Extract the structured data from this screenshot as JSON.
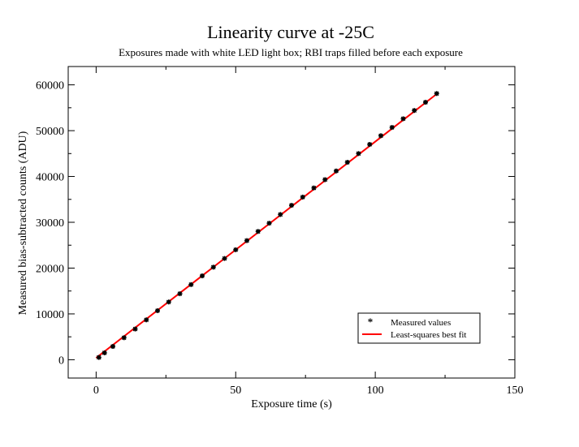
{
  "chart_data": {
    "type": "scatter",
    "title": "Linearity curve at -25C",
    "subtitle": "Exposures made with white LED light box; RBI traps filled before each exposure",
    "xlabel": "Exposure time (s)",
    "ylabel": "Measured bias-subtracted counts (ADU)",
    "xlim": [
      -10,
      150
    ],
    "ylim": [
      -4000,
      64000
    ],
    "xticks": [
      0,
      50,
      100,
      150
    ],
    "yticks": [
      0,
      10000,
      20000,
      30000,
      40000,
      50000,
      60000
    ],
    "xtick_labels": [
      "0",
      "50",
      "100",
      "150"
    ],
    "ytick_labels": [
      "0",
      "10000",
      "20000",
      "30000",
      "40000",
      "50000",
      "60000"
    ],
    "grid": false,
    "legend_position": "bottom-right",
    "series": [
      {
        "name": "Measured values",
        "kind": "points",
        "color": "#000000",
        "x": [
          1,
          3,
          6,
          10,
          14,
          18,
          22,
          26,
          30,
          34,
          38,
          42,
          46,
          50,
          54,
          58,
          62,
          66,
          70,
          74,
          78,
          82,
          86,
          90,
          94,
          98,
          102,
          106,
          110,
          114,
          118,
          122
        ],
        "y": [
          500,
          1500,
          2900,
          4800,
          6700,
          8700,
          10700,
          12600,
          14400,
          16400,
          18300,
          20200,
          22100,
          24000,
          26000,
          28000,
          29800,
          31700,
          33700,
          35500,
          37500,
          39300,
          41200,
          43100,
          45000,
          47000,
          48900,
          50700,
          52600,
          54400,
          56200,
          58100
        ]
      },
      {
        "name": "Least-squares best fit",
        "kind": "line",
        "color": "#ff0000",
        "x": [
          0,
          122
        ],
        "y": [
          400,
          58000
        ]
      }
    ]
  }
}
